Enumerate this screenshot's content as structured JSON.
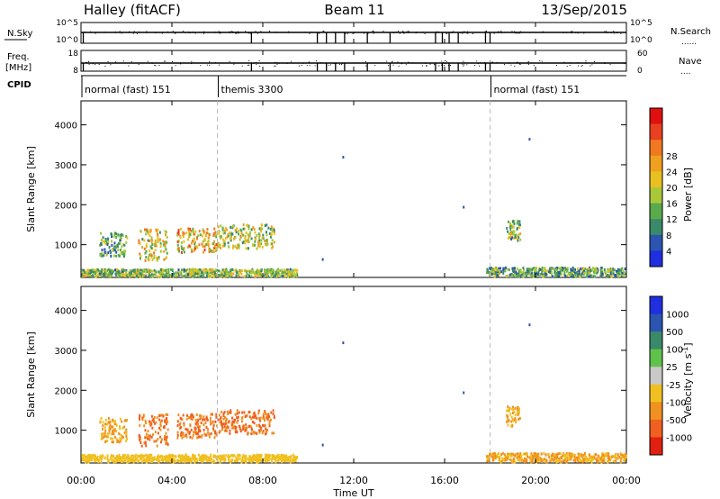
{
  "header": {
    "station": "Halley (fitACF)",
    "beam": "Beam 11",
    "date": "13/Sep/2015"
  },
  "nsky_panel": {
    "left_label": "N.Sky",
    "right_label": "N.Search",
    "right_legend_marker": "......",
    "left_ticks": [
      "10^5",
      "10^0"
    ],
    "right_ticks": [
      "10^5",
      "10^0"
    ]
  },
  "freq_panel": {
    "left_label_line1": "Freq.",
    "left_label_line2": "[MHz]",
    "right_label": "Nave",
    "right_legend_marker": "....",
    "left_ticks": [
      "18",
      "8"
    ],
    "right_ticks": [
      "60",
      "0"
    ]
  },
  "cpid_panel": {
    "label": "CPID",
    "segments": [
      {
        "text": "normal (fast) 151",
        "start_hour": 0
      },
      {
        "text": "themis 3300",
        "start_hour": 6
      },
      {
        "text": "normal (fast) 151",
        "start_hour": 18
      }
    ]
  },
  "time_axis": {
    "label": "Time UT",
    "ticks": [
      "00:00",
      "04:00",
      "08:00",
      "12:00",
      "16:00",
      "20:00",
      "00:00"
    ]
  },
  "colors": {
    "power_scale": [
      "#1f2fe0",
      "#2b55b0",
      "#3a8a6a",
      "#5aaa4c",
      "#a8c83a",
      "#e8c020",
      "#f0a020",
      "#f07820",
      "#e84020",
      "#e01010"
    ],
    "velocity_scale": [
      "#1f2fe0",
      "#2b55b0",
      "#3a8a6a",
      "#5fc24a",
      "#c8c8c8",
      "#f0c020",
      "#f09020",
      "#f06020",
      "#e02010"
    ]
  },
  "chart_data": [
    {
      "type": "heatmap",
      "title": "Power",
      "xlabel": "Time UT",
      "ylabel": "Slant Range [km]",
      "xlim": [
        0,
        24
      ],
      "ylim": [
        180,
        4600
      ],
      "yticks": [
        "1000",
        "2000",
        "3000",
        "4000"
      ],
      "colorbar_label": "Power [dB]",
      "colorbar_ticks": [
        "4",
        "8",
        "12",
        "16",
        "20",
        "24",
        "28"
      ],
      "clim": [
        0,
        30
      ],
      "blobs": [
        {
          "t0": 0.8,
          "t1": 2.0,
          "r0": 700,
          "r1": 1300,
          "level": 10
        },
        {
          "t0": 2.5,
          "t1": 3.8,
          "r0": 600,
          "r1": 1400,
          "level": 16
        },
        {
          "t0": 4.2,
          "t1": 6.0,
          "r0": 800,
          "r1": 1400,
          "level": 18
        },
        {
          "t0": 6.0,
          "t1": 8.5,
          "r0": 900,
          "r1": 1500,
          "level": 14
        },
        {
          "t0": 0.0,
          "t1": 9.5,
          "r0": 200,
          "r1": 380,
          "level": 12
        },
        {
          "t0": 17.8,
          "t1": 24.0,
          "r0": 200,
          "r1": 420,
          "level": 10
        },
        {
          "t0": 18.7,
          "t1": 19.3,
          "r0": 1100,
          "r1": 1600,
          "level": 12
        }
      ]
    },
    {
      "type": "heatmap",
      "title": "Velocity",
      "xlabel": "Time UT",
      "ylabel": "Slant Range [km]",
      "xlim": [
        0,
        24
      ],
      "ylim": [
        180,
        4600
      ],
      "yticks": [
        "1000",
        "2000",
        "3000",
        "4000"
      ],
      "colorbar_label": "Velocity [m s-1]",
      "colorbar_ticks": [
        "1000",
        "500",
        "100",
        "25",
        "-25",
        "-100",
        "-500",
        "-1000"
      ],
      "clim": [
        -1000,
        1000
      ],
      "blobs": [
        {
          "t0": 0.8,
          "t1": 2.0,
          "r0": 700,
          "r1": 1300,
          "level": -100
        },
        {
          "t0": 2.5,
          "t1": 3.8,
          "r0": 600,
          "r1": 1400,
          "level": -500
        },
        {
          "t0": 4.2,
          "t1": 6.0,
          "r0": 800,
          "r1": 1400,
          "level": -500
        },
        {
          "t0": 6.0,
          "t1": 8.5,
          "r0": 900,
          "r1": 1500,
          "level": -500
        },
        {
          "t0": 0.0,
          "t1": 9.5,
          "r0": 200,
          "r1": 380,
          "level": -50
        },
        {
          "t0": 17.8,
          "t1": 24.0,
          "r0": 200,
          "r1": 420,
          "level": -100
        },
        {
          "t0": 18.7,
          "t1": 19.3,
          "r0": 1100,
          "r1": 1600,
          "level": -100
        }
      ]
    }
  ]
}
